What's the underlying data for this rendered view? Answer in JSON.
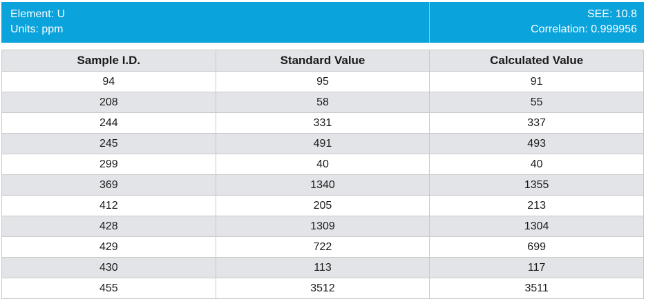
{
  "header": {
    "element_label": "Element: U",
    "units_label": "Units: ppm",
    "see_label": "SEE: 10.8",
    "correlation_label": "Correlation: 0.999956"
  },
  "table": {
    "columns": [
      "Sample I.D.",
      "Standard Value",
      "Calculated Value"
    ],
    "rows": [
      [
        "94",
        "95",
        "91"
      ],
      [
        "208",
        "58",
        "55"
      ],
      [
        "244",
        "331",
        "337"
      ],
      [
        "245",
        "491",
        "493"
      ],
      [
        "299",
        "40",
        "40"
      ],
      [
        "369",
        "1340",
        "1355"
      ],
      [
        "412",
        "205",
        "213"
      ],
      [
        "428",
        "1309",
        "1304"
      ],
      [
        "429",
        "722",
        "699"
      ],
      [
        "430",
        "113",
        "117"
      ],
      [
        "455",
        "3512",
        "3511"
      ]
    ]
  },
  "colors": {
    "header_bg": "#0aa3dc",
    "stripe_bg": "#e3e4e8"
  }
}
